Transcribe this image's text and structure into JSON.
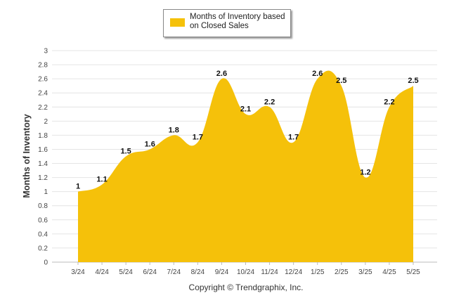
{
  "chart_data": {
    "type": "area",
    "categories": [
      "3/24",
      "4/24",
      "5/24",
      "6/24",
      "7/24",
      "8/24",
      "9/24",
      "10/24",
      "11/24",
      "12/24",
      "1/25",
      "2/25",
      "3/25",
      "4/25",
      "5/25"
    ],
    "series": [
      {
        "name": "Months of Inventory based on Closed Sales",
        "values": [
          1,
          1.1,
          1.5,
          1.6,
          1.8,
          1.7,
          2.6,
          2.1,
          2.2,
          1.7,
          2.6,
          2.5,
          1.2,
          2.2,
          2.5
        ]
      }
    ],
    "data_labels": [
      "1",
      "1.1",
      "1.5",
      "1.6",
      "1.8",
      "1.7",
      "2.6",
      "2.1",
      "2.2",
      "1.7",
      "2.6",
      "2.5",
      "1.2",
      "2.2",
      "2.5"
    ],
    "ylabel": "Months of Inventory",
    "xlabel": "",
    "ylim": [
      0,
      3
    ],
    "yticks": [
      "0",
      "0.2",
      "0.4",
      "0.6",
      "0.8",
      "1",
      "1.2",
      "1.4",
      "1.6",
      "1.8",
      "2",
      "2.2",
      "2.4",
      "2.6",
      "2.8",
      "3"
    ],
    "grid": true,
    "legend_position": "top",
    "color": "#F5C10A"
  },
  "legend": {
    "label": "Months of Inventory based on Closed Sales"
  },
  "footer": {
    "copyright": "Copyright © Trendgraphix, Inc."
  }
}
